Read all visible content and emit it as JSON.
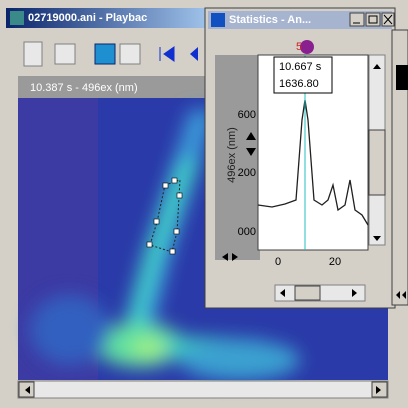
{
  "main_window": {
    "title": "02719000.ani - Playbac",
    "frame_label": "10.387 s - 496ex (nm)"
  },
  "stats_window": {
    "title": "Statistics - An...",
    "cursor_readout": [
      "10.667 s",
      "1636.80"
    ],
    "y_axis_label": "496ex (nm)",
    "y_tick_labels": [
      "600",
      "200",
      "000"
    ],
    "x_tick_labels": [
      "0",
      "20"
    ]
  }
}
